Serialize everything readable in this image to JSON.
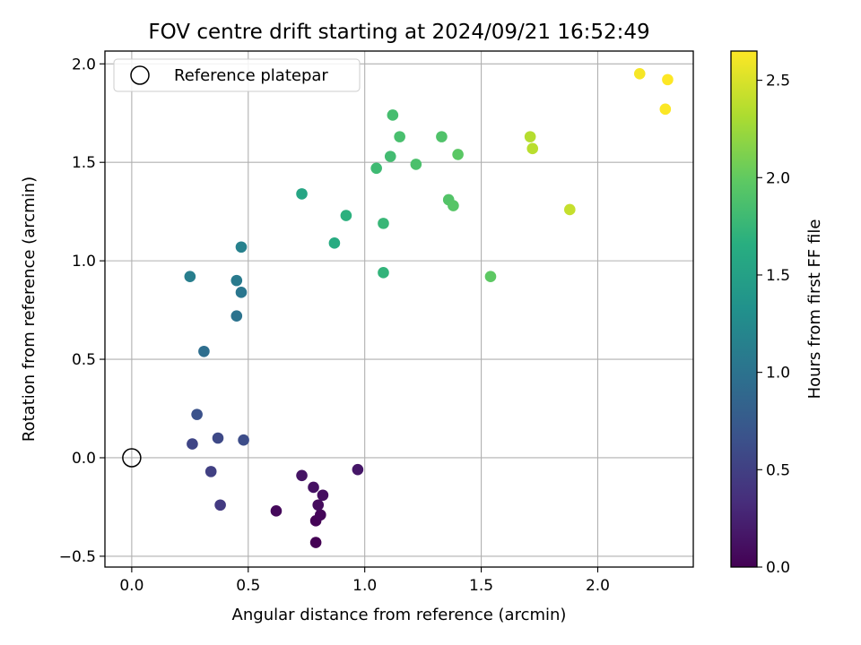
{
  "chart_data": {
    "type": "scatter",
    "title": "FOV centre drift starting at 2024/09/21 16:52:49",
    "xlabel": "Angular distance from reference (arcmin)",
    "ylabel": "Rotation from reference (arcmin)",
    "xlim": [
      -0.115,
      2.41
    ],
    "ylim": [
      -0.555,
      2.065
    ],
    "xticks": [
      0.0,
      0.5,
      1.0,
      1.5,
      2.0
    ],
    "yticks": [
      -0.5,
      0.0,
      0.5,
      1.0,
      1.5,
      2.0
    ],
    "xtick_labels": [
      "0.0",
      "0.5",
      "1.0",
      "1.5",
      "2.0"
    ],
    "ytick_labels": [
      "−0.5",
      "0.0",
      "0.5",
      "1.0",
      "1.5",
      "2.0"
    ],
    "grid": true,
    "legend": {
      "position": "upper-left",
      "entries": [
        "Reference platepar"
      ]
    },
    "reference_point": {
      "x": 0.0,
      "y": 0.0,
      "label": "Reference platepar"
    },
    "colorbar": {
      "label": "Hours from first FF file",
      "colormap": "viridis",
      "range": [
        0.0,
        2.65
      ],
      "ticks": [
        0.0,
        0.5,
        1.0,
        1.5,
        2.0,
        2.5
      ],
      "tick_labels": [
        "0.0",
        "0.5",
        "1.0",
        "1.5",
        "2.0",
        "2.5"
      ]
    },
    "points": [
      {
        "x": 0.79,
        "y": -0.43,
        "t": 0.0
      },
      {
        "x": 0.79,
        "y": -0.32,
        "t": 0.02
      },
      {
        "x": 0.81,
        "y": -0.29,
        "t": 0.04
      },
      {
        "x": 0.62,
        "y": -0.27,
        "t": 0.06
      },
      {
        "x": 0.8,
        "y": -0.24,
        "t": 0.08
      },
      {
        "x": 0.82,
        "y": -0.19,
        "t": 0.1
      },
      {
        "x": 0.78,
        "y": -0.15,
        "t": 0.12
      },
      {
        "x": 0.73,
        "y": -0.09,
        "t": 0.14
      },
      {
        "x": 0.97,
        "y": -0.06,
        "t": 0.16
      },
      {
        "x": 0.38,
        "y": -0.24,
        "t": 0.45
      },
      {
        "x": 0.34,
        "y": -0.07,
        "t": 0.5
      },
      {
        "x": 0.26,
        "y": 0.07,
        "t": 0.55
      },
      {
        "x": 0.37,
        "y": 0.1,
        "t": 0.58
      },
      {
        "x": 0.48,
        "y": 0.09,
        "t": 0.62
      },
      {
        "x": 0.28,
        "y": 0.22,
        "t": 0.66
      },
      {
        "x": 0.31,
        "y": 0.54,
        "t": 0.95
      },
      {
        "x": 0.45,
        "y": 0.72,
        "t": 1.0
      },
      {
        "x": 0.47,
        "y": 0.84,
        "t": 1.04
      },
      {
        "x": 0.45,
        "y": 0.9,
        "t": 1.08
      },
      {
        "x": 0.25,
        "y": 0.92,
        "t": 1.12
      },
      {
        "x": 0.47,
        "y": 1.07,
        "t": 1.15
      },
      {
        "x": 0.73,
        "y": 1.34,
        "t": 1.55
      },
      {
        "x": 0.87,
        "y": 1.09,
        "t": 1.62
      },
      {
        "x": 0.92,
        "y": 1.23,
        "t": 1.68
      },
      {
        "x": 1.08,
        "y": 0.94,
        "t": 1.72
      },
      {
        "x": 1.08,
        "y": 1.19,
        "t": 1.76
      },
      {
        "x": 1.05,
        "y": 1.47,
        "t": 1.8
      },
      {
        "x": 1.11,
        "y": 1.53,
        "t": 1.82
      },
      {
        "x": 1.12,
        "y": 1.74,
        "t": 1.84
      },
      {
        "x": 1.15,
        "y": 1.63,
        "t": 1.86
      },
      {
        "x": 1.22,
        "y": 1.49,
        "t": 1.88
      },
      {
        "x": 1.33,
        "y": 1.63,
        "t": 1.9
      },
      {
        "x": 1.36,
        "y": 1.31,
        "t": 1.92
      },
      {
        "x": 1.38,
        "y": 1.28,
        "t": 1.94
      },
      {
        "x": 1.4,
        "y": 1.54,
        "t": 1.96
      },
      {
        "x": 1.54,
        "y": 0.92,
        "t": 1.98
      },
      {
        "x": 1.71,
        "y": 1.63,
        "t": 2.35
      },
      {
        "x": 1.72,
        "y": 1.57,
        "t": 2.37
      },
      {
        "x": 1.88,
        "y": 1.26,
        "t": 2.42
      },
      {
        "x": 2.18,
        "y": 1.95,
        "t": 2.62
      },
      {
        "x": 2.29,
        "y": 1.77,
        "t": 2.64
      },
      {
        "x": 2.3,
        "y": 1.92,
        "t": 2.65
      }
    ]
  }
}
